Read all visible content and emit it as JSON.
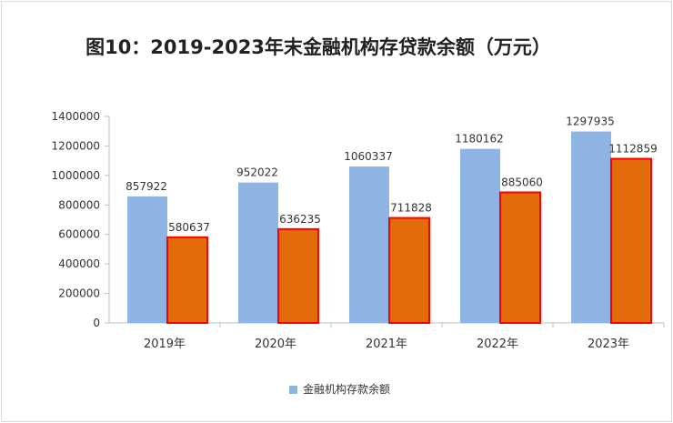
{
  "chart_data": {
    "type": "bar",
    "title": "图10：2019-2023年末金融机构存贷款余额（万元）",
    "categories": [
      "2019年",
      "2020年",
      "2021年",
      "2022年",
      "2023年"
    ],
    "series": [
      {
        "name": "金融机构存款余额",
        "values": [
          857922,
          952022,
          1060337,
          1180162,
          1297935
        ],
        "color": "#8eb4e3"
      },
      {
        "name": "",
        "values": [
          580637,
          636235,
          711828,
          885060,
          1112859
        ],
        "color": "#e36c0a",
        "border": "#ff0000"
      }
    ],
    "ylim": [
      0,
      1400000
    ],
    "yticks": [
      "0",
      "200000",
      "400000",
      "600000",
      "800000",
      "1000000",
      "1200000",
      "1400000"
    ],
    "grid": false,
    "legend_position": "bottom"
  },
  "colors": {
    "axis": "#bfbfbf",
    "text": "#333333"
  }
}
